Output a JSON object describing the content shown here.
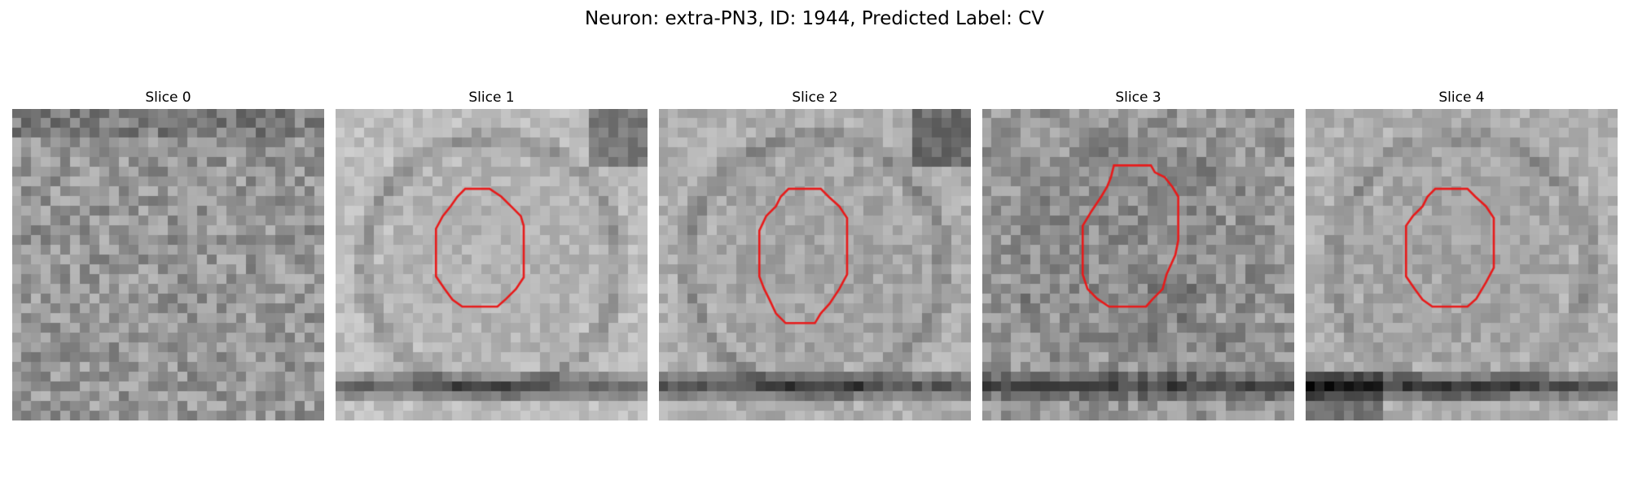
{
  "figure": {
    "title": "Neuron: extra-PN3, ID: 1944, Predicted Label: CV"
  },
  "colors": {
    "contour": "#e81a1a",
    "background": "#ffffff"
  },
  "slices": [
    {
      "label": "Slice 0",
      "has_contour": false
    },
    {
      "label": "Slice 1",
      "has_contour": true
    },
    {
      "label": "Slice 2",
      "has_contour": true
    },
    {
      "label": "Slice 3",
      "has_contour": true
    },
    {
      "label": "Slice 4",
      "has_contour": true
    }
  ]
}
